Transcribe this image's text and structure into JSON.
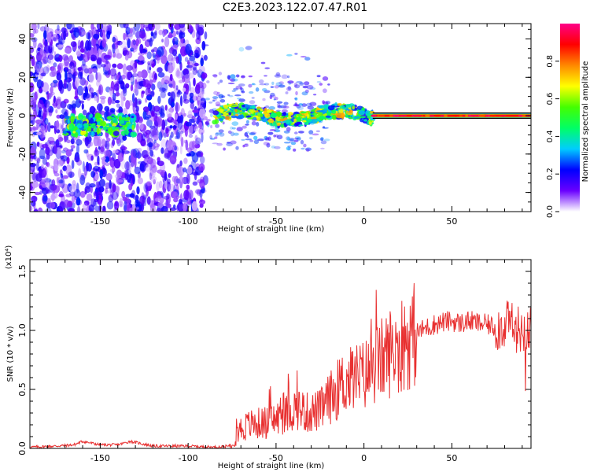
{
  "title": "C2E3.2023.122.07.47.R01",
  "chart_data": [
    {
      "type": "heatmap",
      "xlabel": "Height of straight line (km)",
      "ylabel": "Frequency (Hz)",
      "xlim": [
        -190,
        95
      ],
      "ylim": [
        -50,
        48
      ],
      "xticks": [
        -150,
        -100,
        -50,
        0,
        50
      ],
      "yticks": [
        -40,
        -20,
        0,
        20,
        40
      ],
      "colorbar": {
        "label": "Normalized spectral amplitude",
        "range": [
          0,
          1
        ],
        "ticks": [
          0.0,
          0.2,
          0.4,
          0.6,
          0.8
        ],
        "colormap": [
          "#ffffff",
          "#6a00ff",
          "#0000ff",
          "#00ccff",
          "#00ff66",
          "#44ff00",
          "#ffff00",
          "#ff8800",
          "#ff0000",
          "#ff0088"
        ]
      },
      "features": [
        {
          "x_range": [
            -190,
            -90
          ],
          "amplitude": 0.15,
          "note": "scattered noise across all frequencies"
        },
        {
          "x_range": [
            -170,
            -130
          ],
          "frequency": -5,
          "amplitude": 0.45
        },
        {
          "x_range": [
            -85,
            5
          ],
          "frequency": 0,
          "amplitude": 0.6
        },
        {
          "x_range": [
            5,
            95
          ],
          "frequency": 0,
          "amplitude": 0.9
        }
      ]
    },
    {
      "type": "line",
      "xlabel": "Height of straight line (km)",
      "ylabel": "SNR (10 * v/v)",
      "yscale_label": "(x10⁴)",
      "xlim": [
        -190,
        95
      ],
      "ylim": [
        0,
        1.6
      ],
      "xticks": [
        -150,
        -100,
        -50,
        0,
        50
      ],
      "yticks": [
        0.0,
        0.5,
        1.0,
        1.5
      ],
      "color": "#e83030",
      "series": [
        {
          "x": [
            -190,
            -175,
            -165,
            -160,
            -150,
            -140,
            -133,
            -120,
            -100,
            -85,
            -76,
            -72,
            -65,
            -55,
            -45,
            -38,
            -32,
            -25,
            -18,
            -12,
            -5,
            0,
            5,
            10,
            15,
            20,
            25,
            30,
            35,
            40,
            45,
            50,
            55,
            60,
            65,
            70,
            75,
            80,
            85,
            90,
            95
          ],
          "values": [
            0.01,
            0.02,
            0.03,
            0.06,
            0.03,
            0.03,
            0.06,
            0.02,
            0.02,
            0.01,
            0.02,
            0.15,
            0.2,
            0.22,
            0.28,
            0.35,
            0.3,
            0.32,
            0.45,
            0.55,
            0.6,
            0.62,
            0.68,
            0.75,
            0.82,
            0.88,
            0.93,
            0.98,
            1.02,
            1.05,
            1.07,
            1.08,
            1.06,
            1.08,
            1.06,
            1.05,
            1.02,
            1.05,
            1.03,
            1.0,
            1.05
          ]
        }
      ]
    }
  ]
}
